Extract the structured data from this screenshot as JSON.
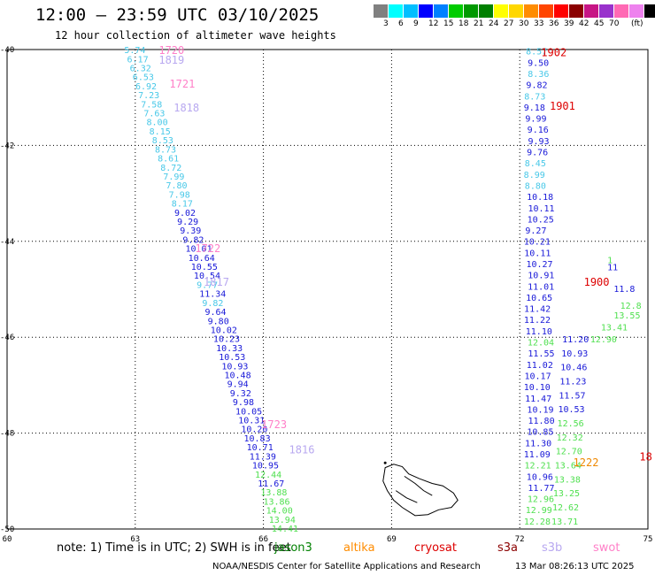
{
  "header": {
    "title": "12:00 – 23:59 UTC 03/10/2025",
    "subtitle": "12 hour collection of altimeter wave heights"
  },
  "colorbar": {
    "colors": [
      "#808080",
      "#00ffff",
      "#00bfff",
      "#0000ff",
      "#0080ff",
      "#00cc00",
      "#009900",
      "#008000",
      "#ffff00",
      "#ffd700",
      "#ff8c00",
      "#ff4500",
      "#ff0000",
      "#8b0000",
      "#c71585",
      "#9932cc",
      "#ff69b4",
      "#ee82ee",
      "#000000"
    ],
    "ticks": [
      "3",
      "6",
      "9",
      "12",
      "15",
      "18",
      "21",
      "24",
      "27",
      "30",
      "33",
      "36",
      "39",
      "42",
      "45",
      "70",
      "(ft)"
    ]
  },
  "map": {
    "lat_labels": [
      "-40",
      "-42",
      "-44",
      "-46",
      "-48",
      "-50"
    ],
    "lon_labels": [
      "60",
      "63",
      "66",
      "69",
      "72",
      "75"
    ],
    "lat_range": [
      -50,
      -40
    ],
    "lon_range": [
      60,
      75
    ]
  },
  "track_west": [
    {
      "v": "5.74",
      "c": "#48c8e8"
    },
    {
      "v": "6.17",
      "c": "#48c8e8"
    },
    {
      "v": "6.32",
      "c": "#48c8e8"
    },
    {
      "v": "6.53",
      "c": "#48c8e8"
    },
    {
      "v": "6.92",
      "c": "#48c8e8"
    },
    {
      "v": "7.23",
      "c": "#48c8e8"
    },
    {
      "v": "7.58",
      "c": "#48c8e8"
    },
    {
      "v": "7.63",
      "c": "#48c8e8"
    },
    {
      "v": "8.00",
      "c": "#48c8e8"
    },
    {
      "v": "8.15",
      "c": "#48c8e8"
    },
    {
      "v": "8.53",
      "c": "#48c8e8"
    },
    {
      "v": "8.73",
      "c": "#48c8e8"
    },
    {
      "v": "8.61",
      "c": "#48c8e8"
    },
    {
      "v": "8.72",
      "c": "#48c8e8"
    },
    {
      "v": "7.99",
      "c": "#48c8e8"
    },
    {
      "v": "7.80",
      "c": "#48c8e8"
    },
    {
      "v": "7.98",
      "c": "#48c8e8"
    },
    {
      "v": "8.17",
      "c": "#48c8e8"
    },
    {
      "v": "9.02",
      "c": "#1818d8"
    },
    {
      "v": "9.29",
      "c": "#1818d8"
    },
    {
      "v": "9.39",
      "c": "#1818d8"
    },
    {
      "v": "9.82",
      "c": "#1818d8"
    },
    {
      "v": "10.01",
      "c": "#1818d8"
    },
    {
      "v": "10.64",
      "c": "#1818d8"
    },
    {
      "v": "10.55",
      "c": "#1818d8"
    },
    {
      "v": "10.54",
      "c": "#1818d8"
    },
    {
      "v": "9.77",
      "c": "#48c8e8"
    },
    {
      "v": "11.34",
      "c": "#1818d8"
    },
    {
      "v": "9.82",
      "c": "#48c8e8"
    },
    {
      "v": "9.64",
      "c": "#1818d8"
    },
    {
      "v": "9.80",
      "c": "#1818d8"
    },
    {
      "v": "10.02",
      "c": "#1818d8"
    },
    {
      "v": "10.23",
      "c": "#1818d8"
    },
    {
      "v": "10.33",
      "c": "#1818d8"
    },
    {
      "v": "10.53",
      "c": "#1818d8"
    },
    {
      "v": "10.93",
      "c": "#1818d8"
    },
    {
      "v": "10.48",
      "c": "#1818d8"
    },
    {
      "v": "9.94",
      "c": "#1818d8"
    },
    {
      "v": "9.32",
      "c": "#1818d8"
    },
    {
      "v": "9.98",
      "c": "#1818d8"
    },
    {
      "v": "10.05",
      "c": "#1818d8"
    },
    {
      "v": "10.31",
      "c": "#1818d8"
    },
    {
      "v": "10.20",
      "c": "#1818d8"
    },
    {
      "v": "10.83",
      "c": "#1818d8"
    },
    {
      "v": "10.71",
      "c": "#1818d8"
    },
    {
      "v": "11.39",
      "c": "#1818d8"
    },
    {
      "v": "10.95",
      "c": "#1818d8"
    },
    {
      "v": "12.44",
      "c": "#50e050"
    },
    {
      "v": "11.67",
      "c": "#1818d8"
    },
    {
      "v": "13.88",
      "c": "#50e050"
    },
    {
      "v": "13.86",
      "c": "#50e050"
    },
    {
      "v": "14.00",
      "c": "#50e050"
    },
    {
      "v": "13.94",
      "c": "#50e050"
    },
    {
      "v": "14.41",
      "c": "#50e050"
    }
  ],
  "track_east": [
    {
      "v": "8.57",
      "c": "#48c8e8"
    },
    {
      "v": "9.50",
      "c": "#1818d8"
    },
    {
      "v": "8.36",
      "c": "#48c8e8"
    },
    {
      "v": "9.82",
      "c": "#1818d8"
    },
    {
      "v": "8.73",
      "c": "#48c8e8"
    },
    {
      "v": "9.18",
      "c": "#1818d8"
    },
    {
      "v": "9.99",
      "c": "#1818d8"
    },
    {
      "v": "9.16",
      "c": "#1818d8"
    },
    {
      "v": "9.93",
      "c": "#1818d8"
    },
    {
      "v": "9.76",
      "c": "#1818d8"
    },
    {
      "v": "8.45",
      "c": "#48c8e8"
    },
    {
      "v": "8.99",
      "c": "#48c8e8"
    },
    {
      "v": "8.80",
      "c": "#48c8e8"
    },
    {
      "v": "10.18",
      "c": "#1818d8"
    },
    {
      "v": "10.11",
      "c": "#1818d8"
    },
    {
      "v": "10.25",
      "c": "#1818d8"
    },
    {
      "v": "9.27",
      "c": "#1818d8"
    },
    {
      "v": "10.21",
      "c": "#1818d8"
    },
    {
      "v": "10.11",
      "c": "#1818d8"
    },
    {
      "v": "10.27",
      "c": "#1818d8"
    },
    {
      "v": "10.91",
      "c": "#1818d8"
    },
    {
      "v": "11.01",
      "c": "#1818d8"
    },
    {
      "v": "10.65",
      "c": "#1818d8"
    },
    {
      "v": "11.42",
      "c": "#1818d8"
    },
    {
      "v": "11.22",
      "c": "#1818d8"
    },
    {
      "v": "11.10",
      "c": "#1818d8"
    },
    {
      "v": "12.04",
      "c": "#50e050"
    },
    {
      "v": "11.55",
      "c": "#1818d8"
    },
    {
      "v": "11.02",
      "c": "#1818d8"
    },
    {
      "v": "10.17",
      "c": "#1818d8"
    },
    {
      "v": "10.10",
      "c": "#1818d8"
    },
    {
      "v": "11.47",
      "c": "#1818d8"
    },
    {
      "v": "10.19",
      "c": "#1818d8"
    },
    {
      "v": "11.80",
      "c": "#1818d8"
    },
    {
      "v": "10.85",
      "c": "#1818d8"
    },
    {
      "v": "11.30",
      "c": "#1818d8"
    },
    {
      "v": "11.09",
      "c": "#1818d8"
    },
    {
      "v": "12.21",
      "c": "#50e050"
    },
    {
      "v": "10.96",
      "c": "#1818d8"
    },
    {
      "v": "11.77",
      "c": "#1818d8"
    },
    {
      "v": "12.96",
      "c": "#50e050"
    },
    {
      "v": "12.99",
      "c": "#50e050"
    },
    {
      "v": "12.28",
      "c": "#50e050"
    }
  ],
  "track_far_east": [
    {
      "v": "11.20",
      "c": "#1818d8"
    },
    {
      "v": "10.93",
      "c": "#1818d8"
    },
    {
      "v": "10.46",
      "c": "#1818d8"
    },
    {
      "v": "11.23",
      "c": "#1818d8"
    },
    {
      "v": "11.57",
      "c": "#1818d8"
    },
    {
      "v": "10.53",
      "c": "#1818d8"
    },
    {
      "v": "12.56",
      "c": "#50e050"
    },
    {
      "v": "12.32",
      "c": "#50e050"
    },
    {
      "v": "12.70",
      "c": "#50e050"
    },
    {
      "v": "13.64",
      "c": "#50e050"
    },
    {
      "v": "13.38",
      "c": "#50e050"
    },
    {
      "v": "13.25",
      "c": "#50e050"
    },
    {
      "v": "12.62",
      "c": "#50e050"
    },
    {
      "v": "13.71",
      "c": "#50e050"
    }
  ],
  "track_edge": [
    {
      "v": "12.8",
      "c": "#50e050"
    },
    {
      "v": "13.55",
      "c": "#50e050"
    },
    {
      "v": "13.41",
      "c": "#50e050"
    },
    {
      "v": "12.90",
      "c": "#50e050"
    },
    {
      "v": "11.8",
      "c": "#1818d8"
    },
    {
      "v": "11",
      "c": "#1818d8"
    },
    {
      "v": "1",
      "c": "#50e050"
    }
  ],
  "time_labels": [
    {
      "t": "1720",
      "c": "#ff80c8"
    },
    {
      "t": "1819",
      "c": "#b8a8f0"
    },
    {
      "t": "1721",
      "c": "#ff80c8"
    },
    {
      "t": "1818",
      "c": "#b8a8f0"
    },
    {
      "t": "1722",
      "c": "#ff80c8"
    },
    {
      "t": "1817",
      "c": "#b8a8f0"
    },
    {
      "t": "1723",
      "c": "#ff80c8"
    },
    {
      "t": "1816",
      "c": "#b8a8f0"
    },
    {
      "t": "1902",
      "c": "#dd0000"
    },
    {
      "t": "1901",
      "c": "#dd0000"
    },
    {
      "t": "1900",
      "c": "#dd0000"
    },
    {
      "t": "18",
      "c": "#dd0000"
    },
    {
      "t": "1222",
      "c": "#ee8800"
    }
  ],
  "footer": {
    "note": "note:  1) Time is in UTC; 2) SWH is in feet",
    "satellites": [
      {
        "name": "jason3",
        "color": "#008000"
      },
      {
        "name": "altika",
        "color": "#ff8c00"
      },
      {
        "name": "cryosat",
        "color": "#dd0000"
      },
      {
        "name": "s3a",
        "color": "#8b0000"
      },
      {
        "name": "s3b",
        "color": "#b8a8f0"
      },
      {
        "name": "swot",
        "color": "#ff80c8"
      }
    ],
    "credit": "NOAA/NESDIS Center for Satellite Applications and Research",
    "timestamp": "13 Mar 08:26:13 UTC 2025"
  }
}
